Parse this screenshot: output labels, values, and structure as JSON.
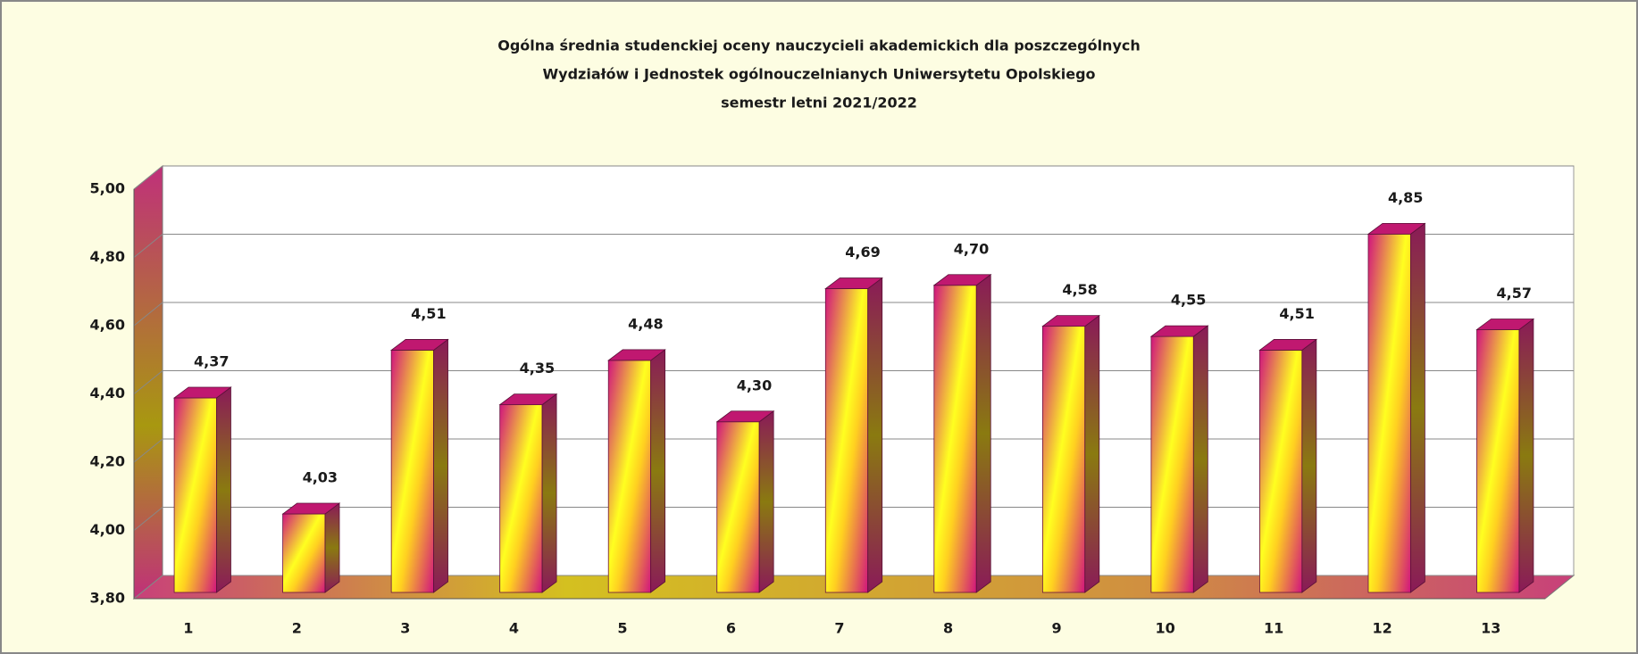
{
  "chart_data": {
    "type": "bar3d",
    "title": [
      "Ogólna średnia studenckiej oceny nauczycieli akademickich dla poszczególnych",
      "Wydziałów i Jednostek ogólnouczelnianych Uniwersytetu Opolskiego",
      "semestr letni 2021/2022"
    ],
    "categories": [
      "1",
      "2",
      "3",
      "4",
      "5",
      "6",
      "7",
      "8",
      "9",
      "10",
      "11",
      "12",
      "13"
    ],
    "values": [
      4.37,
      4.03,
      4.51,
      4.35,
      4.48,
      4.3,
      4.69,
      4.7,
      4.58,
      4.55,
      4.51,
      4.85,
      4.57
    ],
    "value_labels": [
      "4,37",
      "4,03",
      "4,51",
      "4,35",
      "4,48",
      "4,30",
      "4,69",
      "4,70",
      "4,58",
      "4,55",
      "4,51",
      "4,85",
      "4,57"
    ],
    "ylim": [
      3.8,
      5.0
    ],
    "yticks": [
      {
        "value": 3.8,
        "label": "3,80"
      },
      {
        "value": 4.0,
        "label": "4,00"
      },
      {
        "value": 4.2,
        "label": "4,20"
      },
      {
        "value": 4.4,
        "label": "4,40"
      },
      {
        "value": 4.6,
        "label": "4,60"
      },
      {
        "value": 4.8,
        "label": "4,80"
      },
      {
        "value": 5.0,
        "label": "5,00"
      }
    ],
    "grid": true
  }
}
